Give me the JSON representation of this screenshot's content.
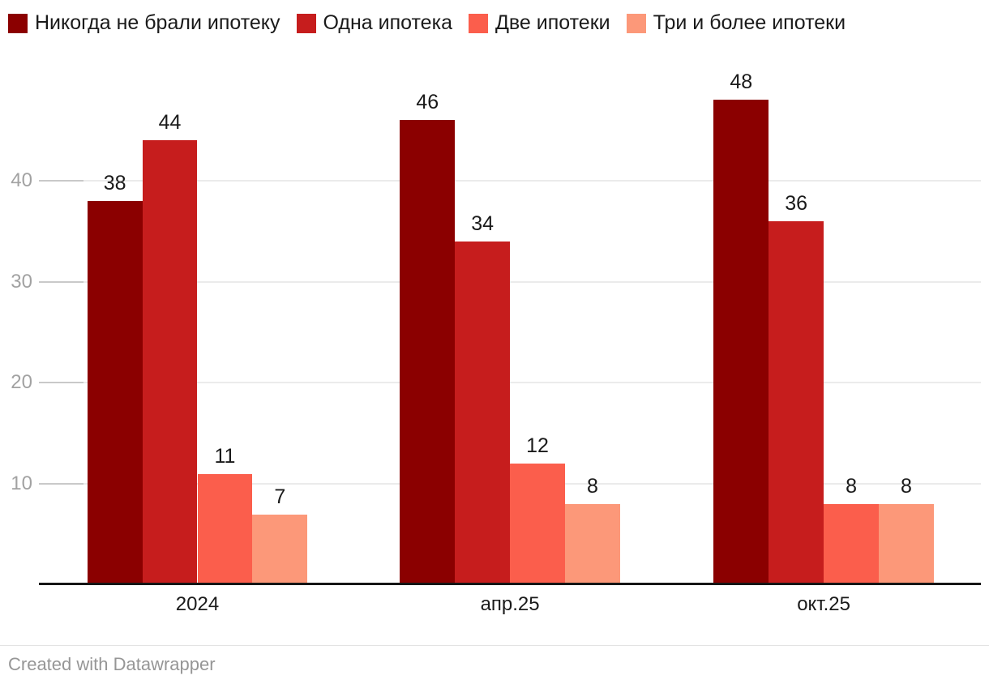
{
  "chart_data": {
    "type": "bar",
    "title": "",
    "xlabel": "",
    "ylabel": "",
    "categories": [
      "2024",
      "апр.25",
      "окт.25"
    ],
    "series": [
      {
        "name": "Никогда не брали ипотеку",
        "color": "#8B0000",
        "values": [
          38,
          46,
          48
        ]
      },
      {
        "name": "Одна ипотека",
        "color": "#C61D1D",
        "values": [
          44,
          34,
          36
        ]
      },
      {
        "name": "Две ипотеки",
        "color": "#FB5E4C",
        "values": [
          11,
          12,
          8
        ]
      },
      {
        "name": "Три и более ипотеки",
        "color": "#FC9879",
        "values": [
          7,
          8,
          8
        ]
      }
    ],
    "yticks": [
      10,
      20,
      30,
      40
    ],
    "ylim": [
      0,
      50
    ],
    "grid": true,
    "legend_position": "top",
    "value_labels": true
  },
  "colors": {
    "axis_text": "#a2a2a2",
    "label_text": "#1a1a1a",
    "gridline": "#ebebeb",
    "tick": "#c9c9c9",
    "baseline": "#161616",
    "footer_text": "#969696"
  },
  "footer": {
    "credit": "Created with Datawrapper"
  }
}
